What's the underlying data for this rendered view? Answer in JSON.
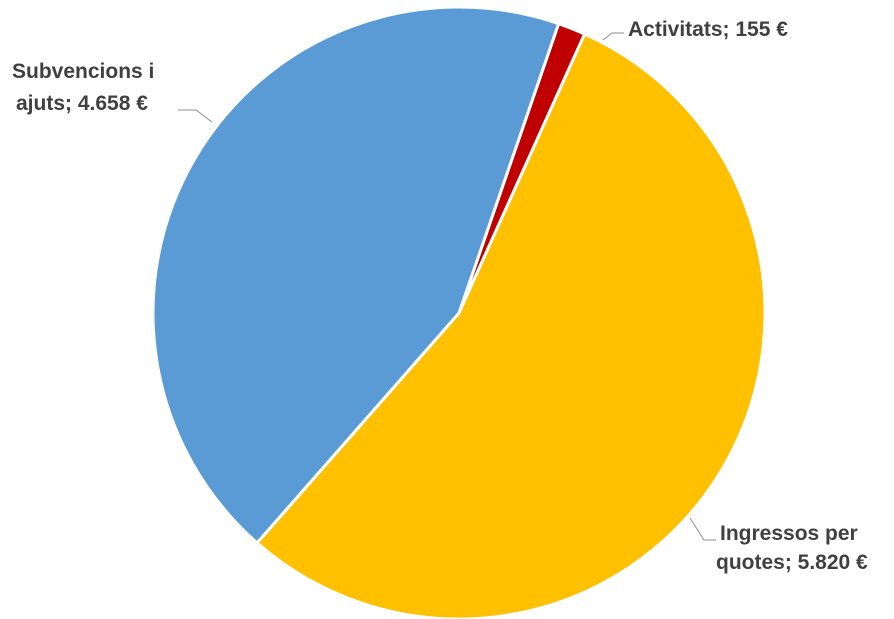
{
  "chart_data": {
    "type": "pie",
    "slices": [
      {
        "name": "Activitats",
        "value": 155,
        "value_text": "155 €",
        "color": "#c00000",
        "label_lines": [
          "Activitats; 155 €"
        ]
      },
      {
        "name": "Ingressos per quotes",
        "value": 5820,
        "value_text": "5.820 €",
        "color": "#ffc000",
        "label_lines": [
          "Ingressos per",
          "quotes; 5.820 €"
        ]
      },
      {
        "name": "Subvencions i ajuts",
        "value": 4658,
        "value_text": "4.658 €",
        "color": "#5b9bd5",
        "label_lines": [
          "Subvencions i",
          "ajuts; 4.658 €"
        ]
      }
    ],
    "start_angle_deg": 19,
    "direction": "clockwise",
    "slice_border_color": "#ffffff",
    "legend": "none",
    "data_labels": "outside with leader lines"
  }
}
